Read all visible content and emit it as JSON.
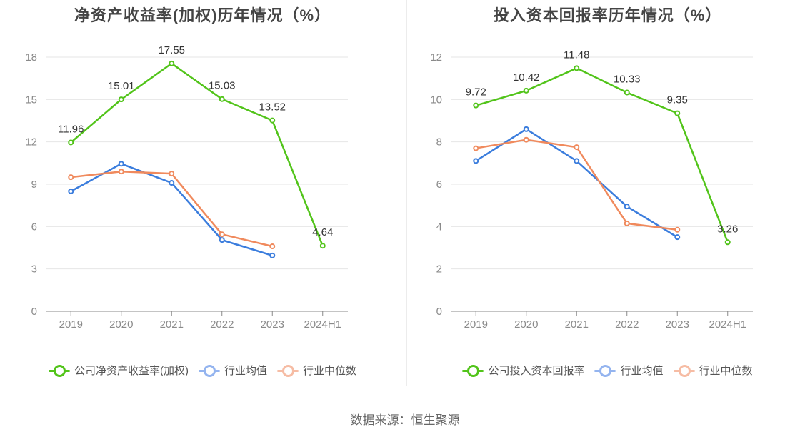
{
  "chart_data": [
    {
      "type": "line",
      "title": "净资产收益率(加权)历年情况（%）",
      "categories": [
        "2019",
        "2020",
        "2021",
        "2022",
        "2023",
        "2024H1"
      ],
      "ylim": [
        0,
        18
      ],
      "yticks": [
        0,
        3,
        6,
        9,
        12,
        15,
        18
      ],
      "grid": true,
      "legend_position": "bottom",
      "series": [
        {
          "name": "公司净资产收益率(加权)",
          "color": "#52c41a",
          "values": [
            11.96,
            15.01,
            17.55,
            15.03,
            13.52,
            4.64
          ],
          "data_labels": [
            "11.96",
            "15.01",
            "17.55",
            "15.03",
            "13.52",
            "4.64"
          ]
        },
        {
          "name": "行业均值",
          "color": "#3b7ddd",
          "values": [
            8.5,
            10.45,
            9.1,
            5.05,
            3.95,
            null
          ]
        },
        {
          "name": "行业中位数",
          "color": "#f08a5d",
          "values": [
            9.5,
            9.9,
            9.75,
            5.45,
            4.6,
            null
          ]
        }
      ]
    },
    {
      "type": "line",
      "title": "投入资本回报率历年情况（%）",
      "categories": [
        "2019",
        "2020",
        "2021",
        "2022",
        "2023",
        "2024H1"
      ],
      "ylim": [
        0,
        12
      ],
      "yticks": [
        0,
        2,
        4,
        6,
        8,
        10,
        12
      ],
      "grid": true,
      "legend_position": "bottom",
      "series": [
        {
          "name": "公司投入资本回报率",
          "color": "#52c41a",
          "values": [
            9.72,
            10.42,
            11.48,
            10.33,
            9.35,
            3.26
          ],
          "data_labels": [
            "9.72",
            "10.42",
            "11.48",
            "10.33",
            "9.35",
            "3.26"
          ]
        },
        {
          "name": "行业均值",
          "color": "#3b7ddd",
          "values": [
            7.1,
            8.6,
            7.1,
            4.95,
            3.5,
            null
          ]
        },
        {
          "name": "行业中位数",
          "color": "#f08a5d",
          "values": [
            7.7,
            8.1,
            7.75,
            4.15,
            3.85,
            null
          ]
        }
      ]
    }
  ],
  "legend_colors": {
    "company": "#52c41a",
    "avg": "#94b4ef",
    "median": "#f6bca4"
  },
  "footer": {
    "source": "数据来源：恒生聚源"
  }
}
